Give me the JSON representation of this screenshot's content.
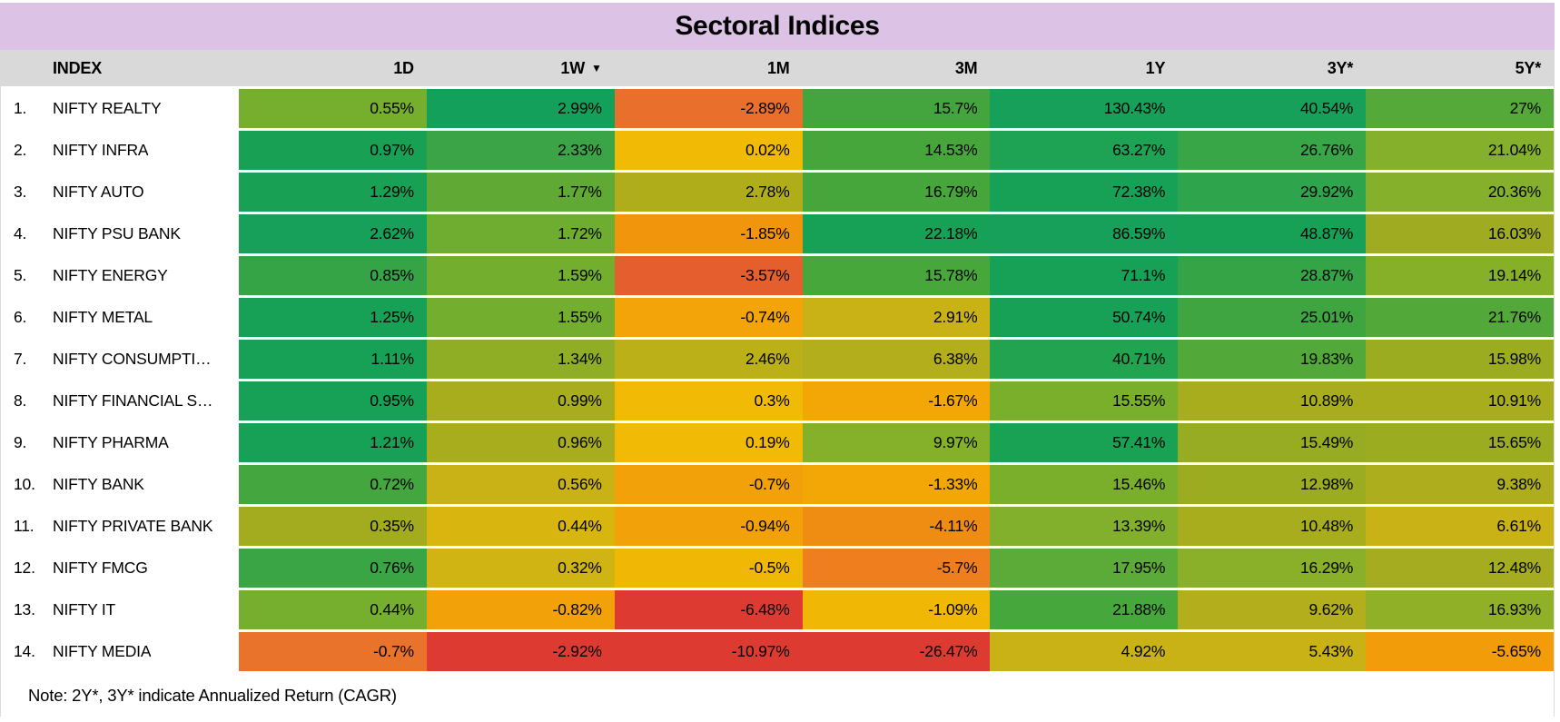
{
  "title": "Sectoral Indices",
  "note": "Note: 2Y*, 3Y* indicate Annualized Return (CAGR)",
  "table": {
    "columns": [
      {
        "label": "INDEX",
        "sorted": false
      },
      {
        "label": "1D",
        "sorted": false
      },
      {
        "label": "1W",
        "sorted": true
      },
      {
        "label": "1M",
        "sorted": false
      },
      {
        "label": "3M",
        "sorted": false
      },
      {
        "label": "1Y",
        "sorted": false
      },
      {
        "label": "3Y*",
        "sorted": false
      },
      {
        "label": "5Y*",
        "sorted": false
      }
    ],
    "sort_icon": "▼",
    "rows": [
      {
        "rank": "1.",
        "name": "NIFTY REALTY",
        "values": [
          "0.55%",
          "2.99%",
          "-2.89%",
          "15.7%",
          "130.43%",
          "40.54%",
          "27%"
        ],
        "colors": [
          "#76ae2d",
          "#13a05b",
          "#e9702c",
          "#44a53e",
          "#16a05a",
          "#16a05a",
          "#55a938"
        ]
      },
      {
        "rank": "2.",
        "name": "NIFTY INFRA",
        "values": [
          "0.97%",
          "2.33%",
          "0.02%",
          "14.53%",
          "63.27%",
          "26.76%",
          "21.04%"
        ],
        "colors": [
          "#18a155",
          "#3aa446",
          "#f1ba05",
          "#46a63c",
          "#1ea355",
          "#38a546",
          "#84b02b"
        ]
      },
      {
        "rank": "3.",
        "name": "NIFTY AUTO",
        "values": [
          "1.29%",
          "1.77%",
          "2.78%",
          "16.79%",
          "72.38%",
          "29.92%",
          "20.36%"
        ],
        "colors": [
          "#18a155",
          "#5fa934",
          "#b0ad1b",
          "#46a63c",
          "#17a156",
          "#2ea44c",
          "#84b02b"
        ]
      },
      {
        "rank": "4.",
        "name": "NIFTY PSU BANK",
        "values": [
          "2.62%",
          "1.72%",
          "-1.85%",
          "22.18%",
          "86.59%",
          "48.87%",
          "16.03%"
        ],
        "colors": [
          "#16a05a",
          "#6ead30",
          "#f1950c",
          "#17a156",
          "#16a05a",
          "#17a156",
          "#9fac21"
        ]
      },
      {
        "rank": "5.",
        "name": "NIFTY ENERGY",
        "values": [
          "0.85%",
          "1.59%",
          "-3.57%",
          "15.78%",
          "71.1%",
          "28.87%",
          "19.14%"
        ],
        "colors": [
          "#35a447",
          "#74ae2e",
          "#e45f2d",
          "#48a73b",
          "#17a156",
          "#35a447",
          "#87b029"
        ]
      },
      {
        "rank": "6.",
        "name": "NIFTY METAL",
        "values": [
          "1.25%",
          "1.55%",
          "-0.74%",
          "2.91%",
          "50.74%",
          "25.01%",
          "21.76%"
        ],
        "colors": [
          "#17a156",
          "#74ae2e",
          "#f2a408",
          "#c9b216",
          "#17a156",
          "#3ea541",
          "#52a93a"
        ]
      },
      {
        "rank": "7.",
        "name": "NIFTY CONSUMPTI…",
        "values": [
          "1.11%",
          "1.34%",
          "2.46%",
          "6.38%",
          "40.71%",
          "19.83%",
          "15.98%"
        ],
        "colors": [
          "#17a156",
          "#8fae25",
          "#bcb018",
          "#b3ae1c",
          "#22a350",
          "#52a93a",
          "#9cac21"
        ]
      },
      {
        "rank": "8.",
        "name": "NIFTY FINANCIAL S…",
        "values": [
          "0.95%",
          "0.99%",
          "0.3%",
          "-1.67%",
          "15.55%",
          "10.89%",
          "10.91%"
        ],
        "colors": [
          "#17a156",
          "#a8ad1e",
          "#f1ba05",
          "#f2a707",
          "#7aaf2c",
          "#a8ad1e",
          "#a8ad1e"
        ]
      },
      {
        "rank": "9.",
        "name": "NIFTY PHARMA",
        "values": [
          "1.21%",
          "0.96%",
          "0.19%",
          "9.97%",
          "57.41%",
          "15.49%",
          "15.65%"
        ],
        "colors": [
          "#17a156",
          "#a8ad1e",
          "#f1ba05",
          "#85b02a",
          "#19a254",
          "#97ac23",
          "#9cac21"
        ]
      },
      {
        "rank": "10.",
        "name": "NIFTY BANK",
        "values": [
          "0.72%",
          "0.56%",
          "-0.7%",
          "-1.33%",
          "15.46%",
          "12.98%",
          "9.38%"
        ],
        "colors": [
          "#44a63e",
          "#c9b216",
          "#f2a109",
          "#f2a707",
          "#7aaf2c",
          "#9cac21",
          "#adad1d"
        ]
      },
      {
        "rank": "11.",
        "name": "NIFTY PRIVATE BANK",
        "values": [
          "0.35%",
          "0.44%",
          "-0.94%",
          "-4.11%",
          "13.39%",
          "10.48%",
          "6.61%"
        ],
        "colors": [
          "#a3ac1f",
          "#d9b60f",
          "#f2a109",
          "#ef8d13",
          "#82b02c",
          "#a8ad1e",
          "#c8b216"
        ]
      },
      {
        "rank": "12.",
        "name": "NIFTY FMCG",
        "values": [
          "0.76%",
          "0.32%",
          "-0.5%",
          "-5.7%",
          "17.95%",
          "16.29%",
          "12.48%"
        ],
        "colors": [
          "#3aa545",
          "#cfb413",
          "#f0b805",
          "#ee7e1e",
          "#5caa37",
          "#8ab029",
          "#a6ac1f"
        ]
      },
      {
        "rank": "13.",
        "name": "NIFTY IT",
        "values": [
          "0.44%",
          "-0.82%",
          "-6.48%",
          "-1.09%",
          "21.88%",
          "9.62%",
          "16.93%"
        ],
        "colors": [
          "#76ae2d",
          "#f2a109",
          "#dd3b31",
          "#f0b805",
          "#46a73c",
          "#b3ae1c",
          "#8fb027"
        ]
      },
      {
        "rank": "14.",
        "name": "NIFTY MEDIA",
        "values": [
          "-0.7%",
          "-2.92%",
          "-10.97%",
          "-26.47%",
          "4.92%",
          "5.43%",
          "-5.65%"
        ],
        "colors": [
          "#e9732a",
          "#dd3b31",
          "#dd3b31",
          "#dd3b31",
          "#c9b216",
          "#c9b216",
          "#f29c09"
        ]
      }
    ]
  },
  "colors": {
    "title_bg": "#dcc2e5",
    "header_bg": "#d9d9d9",
    "text": "#000000"
  },
  "chart_data": {
    "type": "heatmap",
    "title": "Sectoral Indices",
    "unit": "%",
    "columns": [
      "1D",
      "1W",
      "1M",
      "3M",
      "1Y",
      "3Y*",
      "5Y*"
    ],
    "rows": [
      "NIFTY REALTY",
      "NIFTY INFRA",
      "NIFTY AUTO",
      "NIFTY PSU BANK",
      "NIFTY ENERGY",
      "NIFTY METAL",
      "NIFTY CONSUMPTI…",
      "NIFTY FINANCIAL S…",
      "NIFTY PHARMA",
      "NIFTY BANK",
      "NIFTY PRIVATE BANK",
      "NIFTY FMCG",
      "NIFTY IT",
      "NIFTY MEDIA"
    ],
    "values": [
      [
        0.55,
        2.99,
        -2.89,
        15.7,
        130.43,
        40.54,
        27
      ],
      [
        0.97,
        2.33,
        0.02,
        14.53,
        63.27,
        26.76,
        21.04
      ],
      [
        1.29,
        1.77,
        2.78,
        16.79,
        72.38,
        29.92,
        20.36
      ],
      [
        2.62,
        1.72,
        -1.85,
        22.18,
        86.59,
        48.87,
        16.03
      ],
      [
        0.85,
        1.59,
        -3.57,
        15.78,
        71.1,
        28.87,
        19.14
      ],
      [
        1.25,
        1.55,
        -0.74,
        2.91,
        50.74,
        25.01,
        21.76
      ],
      [
        1.11,
        1.34,
        2.46,
        6.38,
        40.71,
        19.83,
        15.98
      ],
      [
        0.95,
        0.99,
        0.3,
        -1.67,
        15.55,
        10.89,
        10.91
      ],
      [
        1.21,
        0.96,
        0.19,
        9.97,
        57.41,
        15.49,
        15.65
      ],
      [
        0.72,
        0.56,
        -0.7,
        -1.33,
        15.46,
        12.98,
        9.38
      ],
      [
        0.35,
        0.44,
        -0.94,
        -4.11,
        13.39,
        10.48,
        6.61
      ],
      [
        0.76,
        0.32,
        -0.5,
        -5.7,
        17.95,
        16.29,
        12.48
      ],
      [
        0.44,
        -0.82,
        -6.48,
        -1.09,
        21.88,
        9.62,
        16.93
      ],
      [
        -0.7,
        -2.92,
        -10.97,
        -26.47,
        4.92,
        5.43,
        -5.65
      ]
    ],
    "sorted_by": "1W",
    "sort_order": "desc",
    "color_scale": "red-yellow-green (low to high)",
    "note": "Note: 2Y*, 3Y* indicate Annualized Return (CAGR)"
  }
}
